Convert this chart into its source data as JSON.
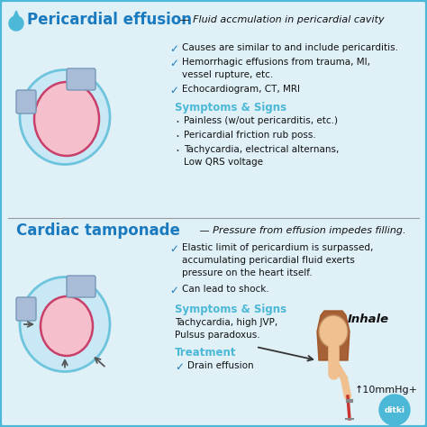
{
  "bg_color": "#dff0f7",
  "border_color": "#4cb8d8",
  "title1": "Pericardial effusion",
  "title1_color": "#1a7abf",
  "subtitle1": " — Fluid accmulation in pericardial cavity",
  "subtitle1_color": "#111111",
  "section1_checks": [
    "Causes are similar to and include pericarditis.",
    "Hemorrhagic effusions from trauma, MI,\nvessel rupture, etc.",
    "Echocardiogram, CT, MRI"
  ],
  "section1_symptoms_title": "Symptoms & Signs",
  "section1_symptoms": [
    "Painless (w/out pericarditis, etc.)",
    "Pericardial friction rub poss.",
    "Tachycardia, electrical alternans,\nLow QRS voltage"
  ],
  "title2": "Cardiac tamponade",
  "title2_color": "#1a7abf",
  "subtitle2": " — Pressure from effusion impedes filling.",
  "subtitle2_color": "#111111",
  "section2_checks": [
    "Elastic limit of pericardium is surpassed,\naccumulating pericardial fluid exerts\npressure on the heart itself.",
    "Can lead to shock."
  ],
  "section2_symptoms_title": "Symptoms & Signs",
  "section2_symptoms": "Tachycardia, high JVP,\nPulsus paradoxus.",
  "section2_treatment_title": "Treatment",
  "section2_treatment": "Drain effusion",
  "check_color": "#1a7abf",
  "check_mark": "✓",
  "symptoms_title_color": "#4cb8d8",
  "treatment_title_color": "#4cb8d8",
  "dot_color": "#444444",
  "text_color": "#111111",
  "inhale_text": "Inhale",
  "mmhg_text": "↑10mmHg+",
  "divider_color": "#999999",
  "fluid_color": "#c8e8f5",
  "outer_border_color": "#6dc4dc",
  "inner_color": "#f5c0cc",
  "inner_border_color": "#c8406a",
  "vessel_color": "#a8bcd8",
  "vessel_border_color": "#7898b8",
  "hair_color": "#a05020",
  "skin_color": "#f0c090",
  "syringe_color": "#cc3333"
}
